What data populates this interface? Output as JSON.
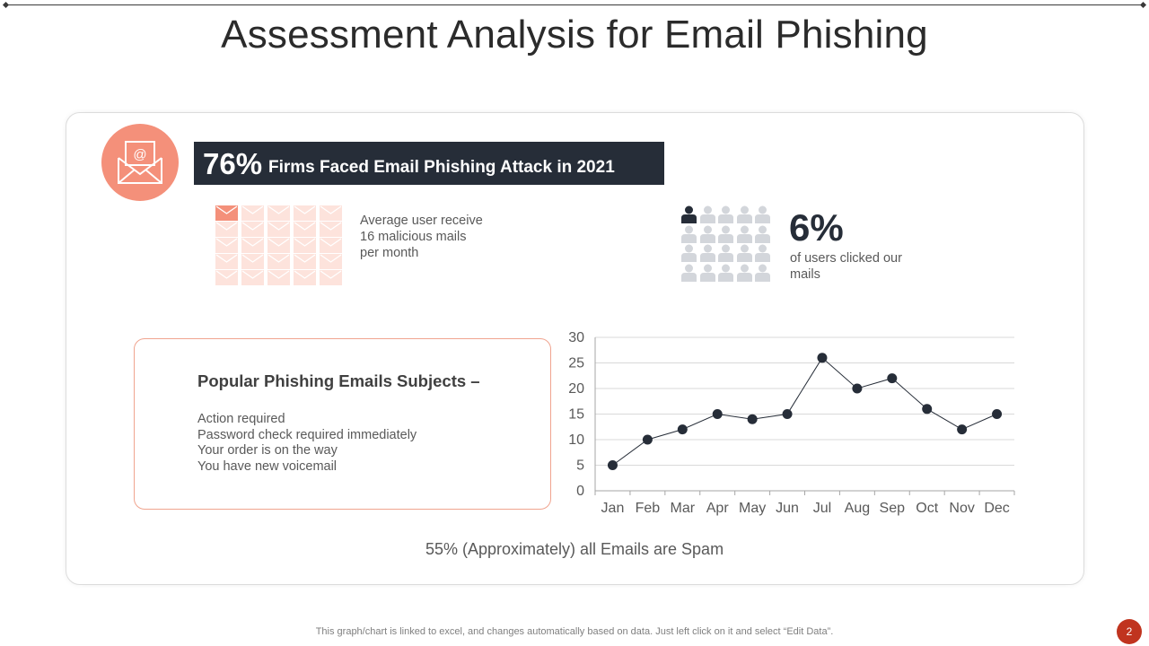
{
  "title": "Assessment Analysis for Email Phishing",
  "banner": {
    "percent": "76%",
    "text": "Firms Faced Email Phishing Attack in 2021"
  },
  "stat_mails": {
    "text": "Average user receive 16 malicious mails per month",
    "highlighted": 1,
    "total": 25
  },
  "stat_users": {
    "percent": "6%",
    "text": "of users clicked our mails",
    "highlighted": 1,
    "total": 20
  },
  "subjects": {
    "title": "Popular Phishing Emails Subjects –",
    "items": [
      "Action required",
      "Password check required immediately",
      "Your order is on the way",
      "You have new voicemail"
    ]
  },
  "chart_data": {
    "type": "line",
    "categories": [
      "Jan",
      "Feb",
      "Mar",
      "Apr",
      "May",
      "Jun",
      "Jul",
      "Aug",
      "Sep",
      "Oct",
      "Nov",
      "Dec"
    ],
    "values": [
      5,
      10,
      12,
      15,
      14,
      15,
      26,
      20,
      22,
      16,
      12,
      15
    ],
    "ylim": [
      0,
      30
    ],
    "yticks": [
      "0",
      "5",
      "10",
      "15",
      "20",
      "25",
      "30"
    ],
    "grid": true,
    "colors": {
      "line": "#262d38",
      "marker": "#262d38",
      "grid": "#d9d9d9"
    }
  },
  "spam_note": "55% (Approximately) all Emails are Spam",
  "footer": "This graph/chart is linked to excel,  and changes automatically based on data. Just left click on it and select “Edit Data”.",
  "page_number": "2",
  "colors": {
    "accent": "#f4907a",
    "dark": "#262d38",
    "page_badge": "#c0341f",
    "faded_accent": "#fde3dc",
    "faded_person": "#d3d6db"
  }
}
